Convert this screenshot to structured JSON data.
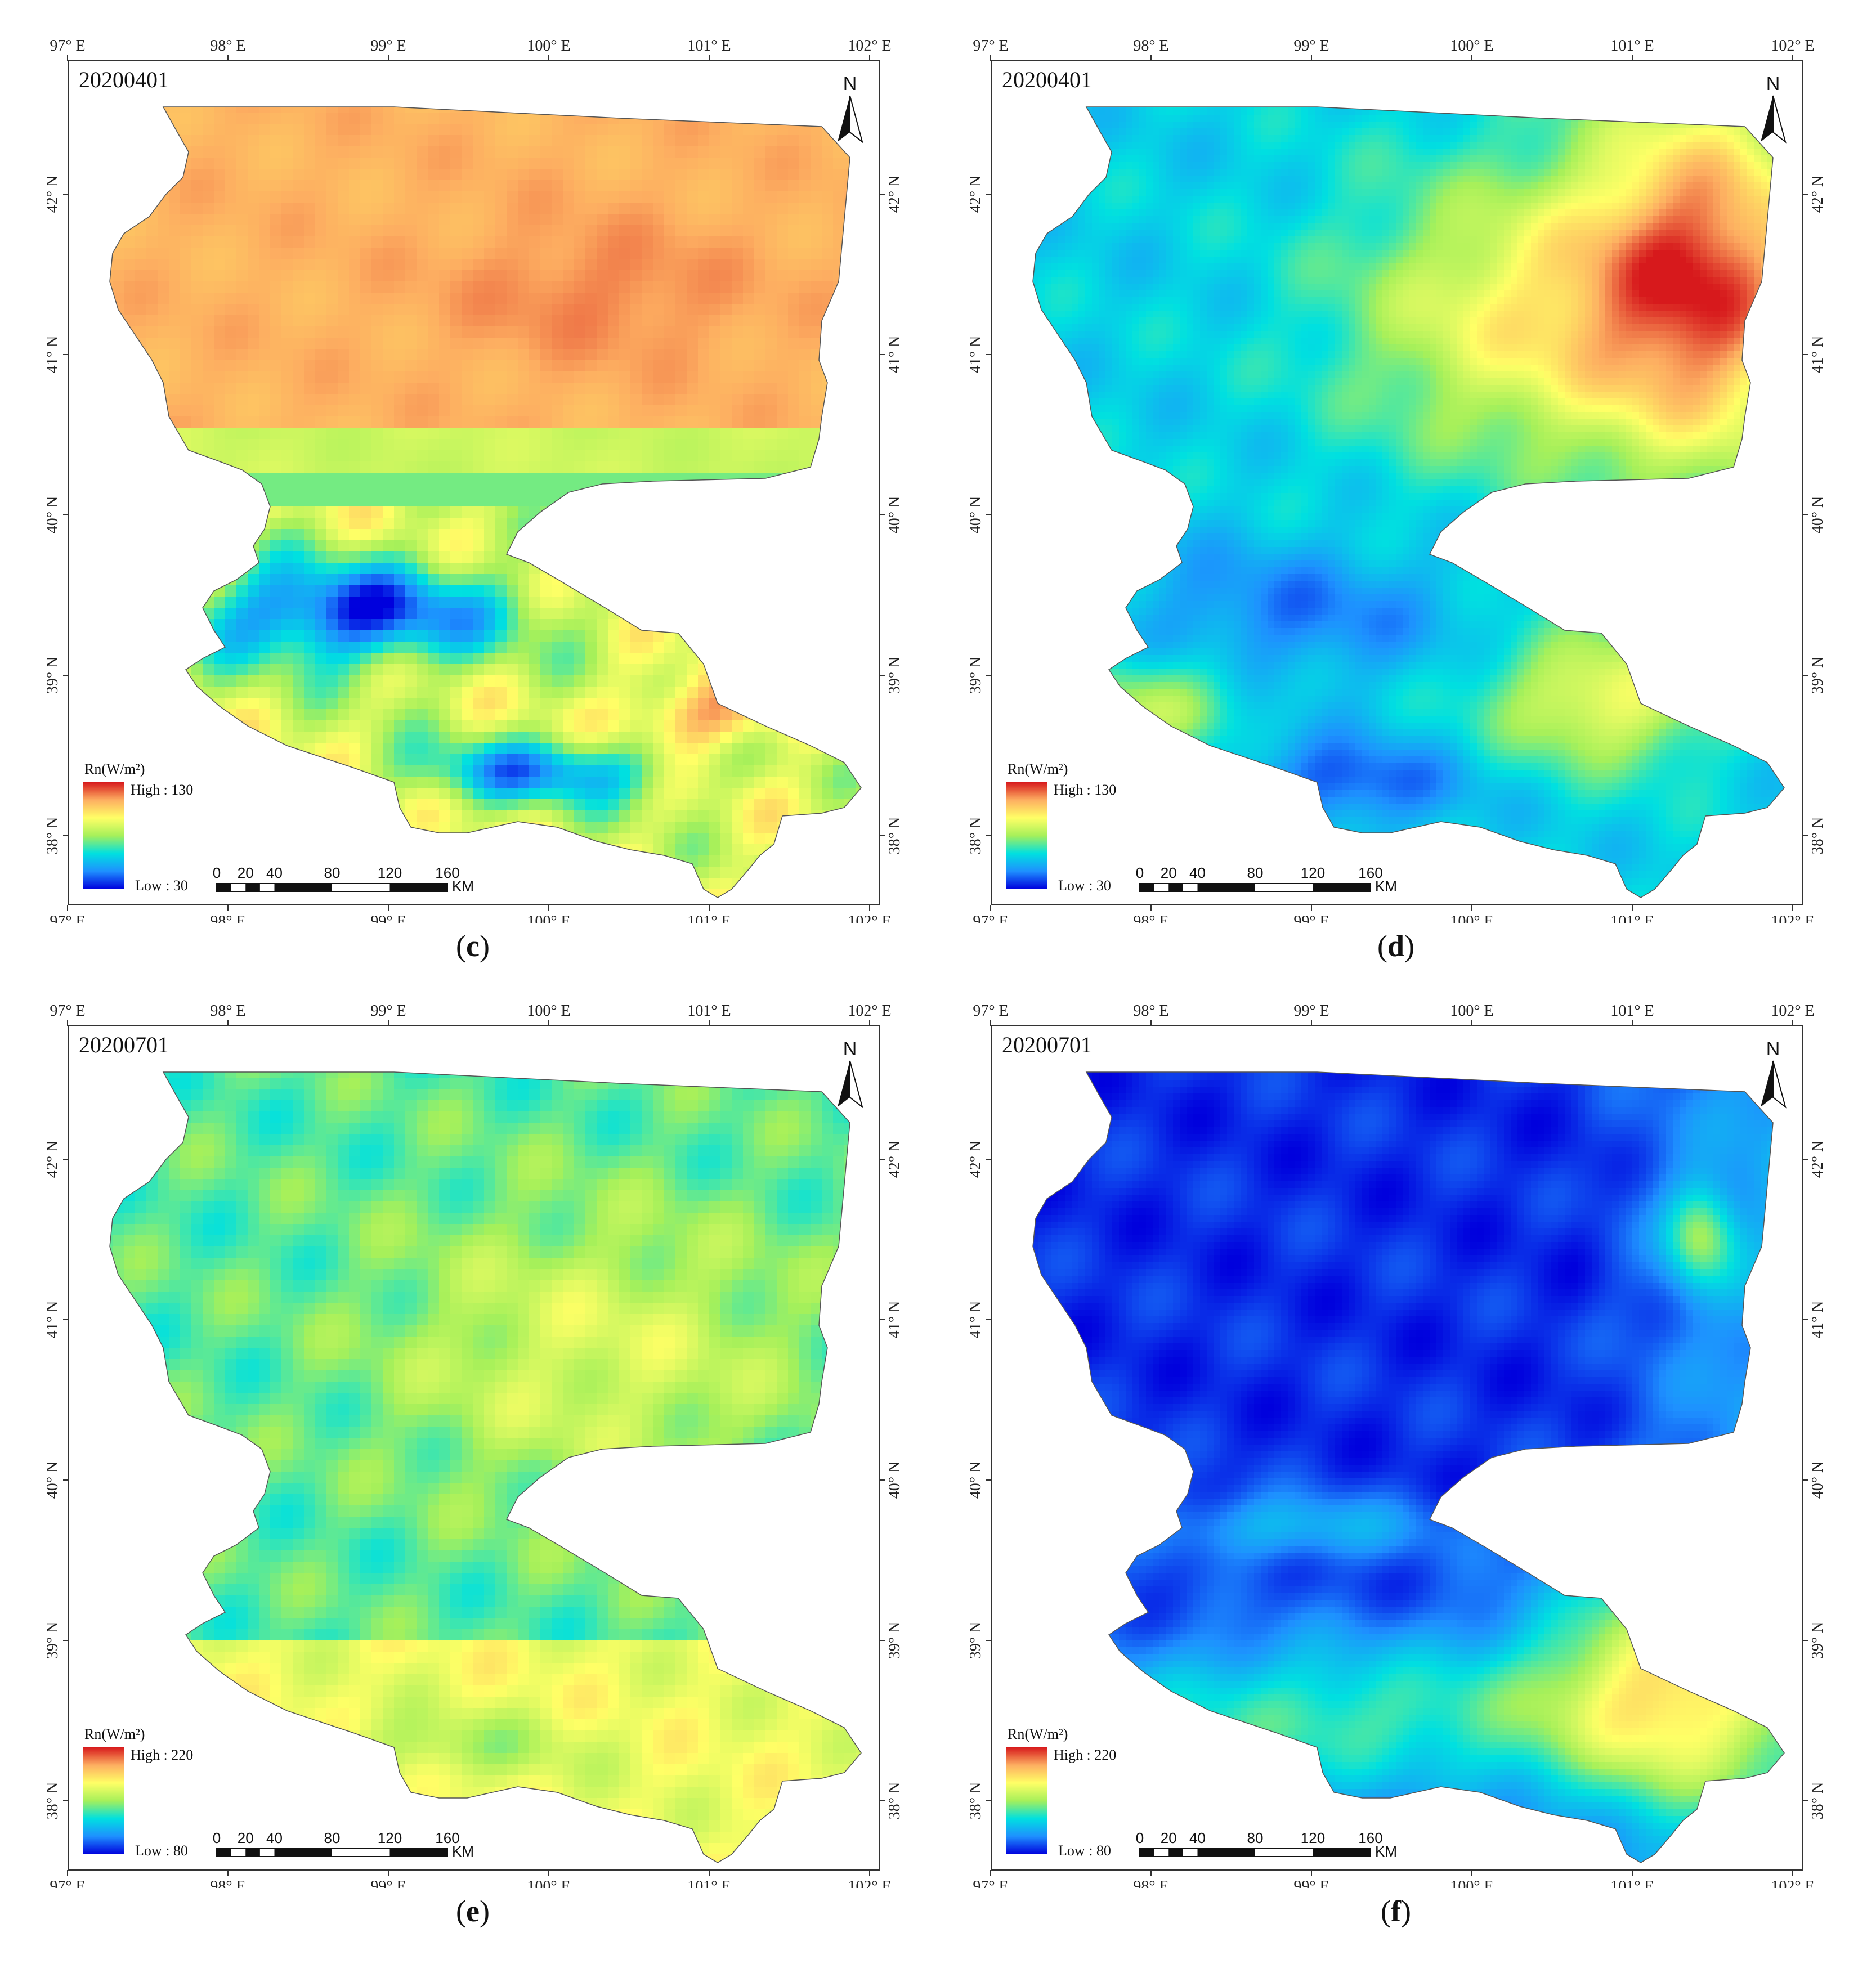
{
  "panels": [
    {
      "id": "c",
      "date": "20200401",
      "caption_letter": "c",
      "legend_title": "Rn(W/m²)",
      "high": "High : 130",
      "low": "Low : 30",
      "style": "coarse-warm"
    },
    {
      "id": "d",
      "date": "20200401",
      "caption_letter": "d",
      "legend_title": "Rn(W/m²)",
      "high": "High : 130",
      "low": "Low : 30",
      "style": "smooth-mixed"
    },
    {
      "id": "e",
      "date": "20200701",
      "caption_letter": "e",
      "legend_title": "Rn(W/m²)",
      "high": "High : 220",
      "low": "Low : 80",
      "style": "coarse-cool"
    },
    {
      "id": "f",
      "date": "20200701",
      "caption_letter": "f",
      "legend_title": "Rn(W/m²)",
      "high": "High : 220",
      "low": "Low : 80",
      "style": "smooth-blue"
    }
  ],
  "axes": {
    "lon_labels": [
      "97° E",
      "98° E",
      "99° E",
      "100° E",
      "101° E",
      "102° E"
    ],
    "lat_labels": [
      "42° N",
      "41° N",
      "40° N",
      "39° N",
      "38° N"
    ]
  },
  "north_arrow": "N",
  "scale_bar": {
    "ticks": [
      "0",
      "20",
      "40",
      "80",
      "120",
      "160"
    ],
    "unit": "KM"
  },
  "colors": {
    "ramp": [
      "#d7191c",
      "#fdae61",
      "#ffff66",
      "#a6f05a",
      "#00e0e0",
      "#1e90ff",
      "#0000dd"
    ]
  }
}
